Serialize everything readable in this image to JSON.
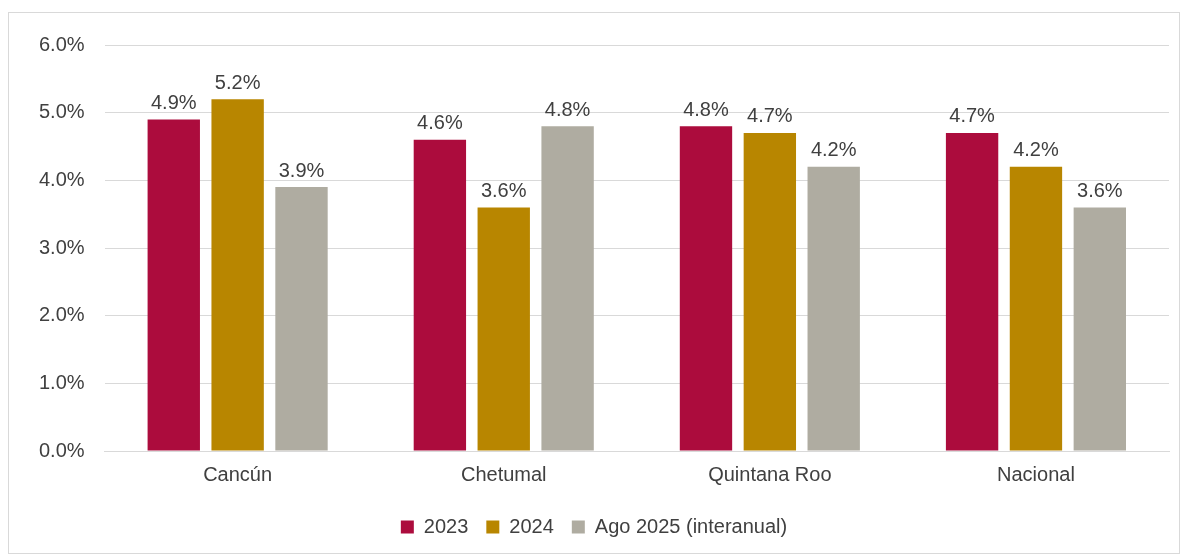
{
  "chart_data": {
    "type": "bar",
    "categories": [
      "Cancún",
      "Chetumal",
      "Quintana Roo",
      "Nacional"
    ],
    "series": [
      {
        "name": "2023",
        "color": "#ac0c3d",
        "values": [
          4.9,
          4.6,
          4.8,
          4.7
        ],
        "value_labels": [
          "4.9%",
          "4.6%",
          "4.8%",
          "4.7%"
        ]
      },
      {
        "name": "2024",
        "color": "#b88600",
        "values": [
          5.2,
          3.6,
          4.7,
          4.2
        ],
        "value_labels": [
          "5.2%",
          "3.6%",
          "4.7%",
          "4.2%"
        ]
      },
      {
        "name": "Ago 2025 (interanual)",
        "color": "#afaca1",
        "values": [
          3.9,
          4.8,
          4.2,
          3.6
        ],
        "value_labels": [
          "3.9%",
          "4.8%",
          "4.2%",
          "3.6%"
        ]
      }
    ],
    "ylim": [
      0,
      6
    ],
    "yticks": [
      {
        "value": 0,
        "label": "0.0%"
      },
      {
        "value": 1,
        "label": "1.0%"
      },
      {
        "value": 2,
        "label": "2.0%"
      },
      {
        "value": 3,
        "label": "3.0%"
      },
      {
        "value": 4,
        "label": "4.0%"
      },
      {
        "value": 5,
        "label": "5.0%"
      },
      {
        "value": 6,
        "label": "6.0%"
      }
    ],
    "grid": "y",
    "legend": "bottom"
  }
}
